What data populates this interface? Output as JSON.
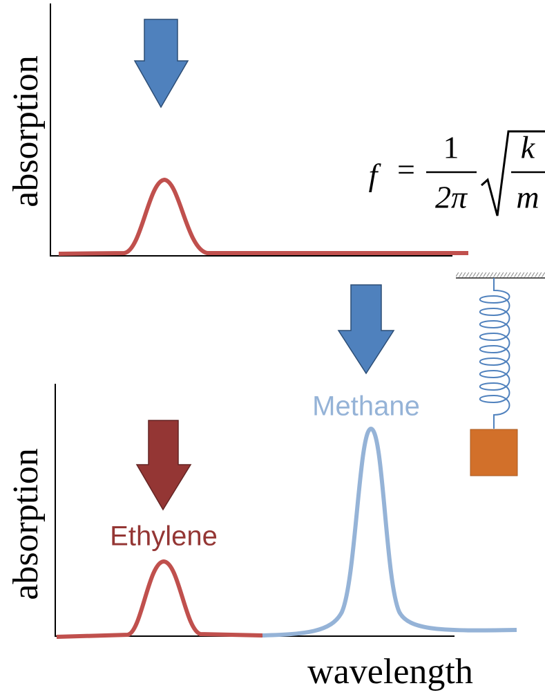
{
  "top_panel": {
    "y_label": "absorption"
  },
  "formula": {
    "lhs": "f",
    "equals": "=",
    "numerator": "1",
    "denominator": "2π",
    "root_numerator": "k",
    "root_denominator": "m"
  },
  "bottom_panel": {
    "y_label": "absorption",
    "x_label": "wavelength",
    "labels": {
      "ethylene": "Ethylene",
      "methane": "Methane"
    }
  }
}
